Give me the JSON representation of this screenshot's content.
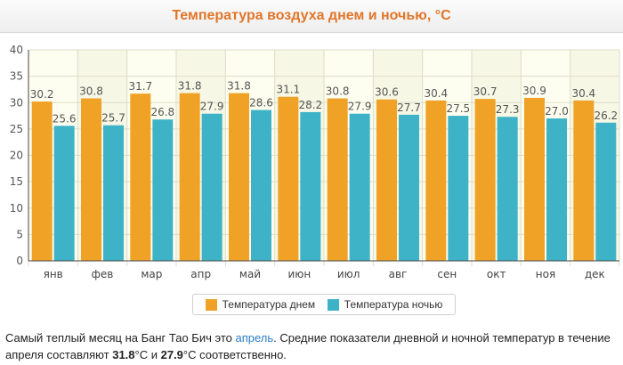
{
  "colors": {
    "day": "#f0a227",
    "night": "#3eb3c8",
    "title": "#e0762a",
    "link": "#2a7fc3"
  },
  "chart_data": {
    "type": "bar",
    "title": "Температура воздуха днем и ночью, °C",
    "categories": [
      "янв",
      "фев",
      "мар",
      "апр",
      "май",
      "июн",
      "июл",
      "авг",
      "сен",
      "окт",
      "ноя",
      "дек"
    ],
    "series": [
      {
        "name": "Температура днем",
        "values": [
          30.2,
          30.8,
          31.7,
          31.8,
          31.8,
          31.1,
          30.8,
          30.6,
          30.4,
          30.7,
          30.9,
          30.4
        ]
      },
      {
        "name": "Температура ночью",
        "values": [
          25.6,
          25.7,
          26.8,
          27.9,
          28.6,
          28.2,
          27.9,
          27.7,
          27.5,
          27.3,
          27.0,
          26.2
        ]
      }
    ],
    "value_labels": {
      "day": [
        "30.2",
        "30.8",
        "31.7",
        "31.8",
        "31.8",
        "31.1",
        "30.8",
        "30.6",
        "30.4",
        "30.7",
        "30.9",
        "30.4"
      ],
      "night": [
        "25.6",
        "25.7",
        "26.8",
        "27.9",
        "28.6",
        "28.2",
        "27.9",
        "27.7",
        "27.5",
        "27.3",
        "27.0",
        "26.2"
      ]
    },
    "yticks": [
      0,
      5,
      10,
      15,
      20,
      25,
      30,
      35,
      40
    ],
    "ylim": [
      0,
      40
    ],
    "xlabel": "",
    "ylabel": "",
    "grid": true,
    "legend_position": "bottom"
  },
  "legend": {
    "day_label": "Температура днем",
    "night_label": "Температура ночью"
  },
  "footer": {
    "text_1": "Самый теплый месяц на Банг Тао Бич это ",
    "link": "апрель",
    "text_2": ". Средние показатели дневной и ночной температур в течение апреля составляют ",
    "day_value": "31.8",
    "text_3": "°C и ",
    "night_value": "27.9",
    "text_4": "°C соответственно."
  }
}
